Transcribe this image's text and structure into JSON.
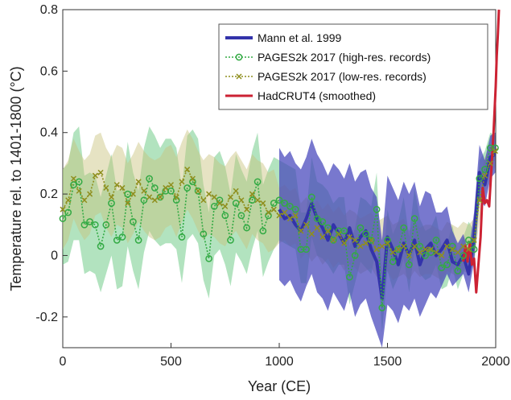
{
  "chart_data": {
    "type": "line",
    "title": "",
    "xlabel": "Year (CE)",
    "ylabel": "Temperature rel. to 1401-1800 (°C)",
    "xlim": [
      0,
      2000
    ],
    "ylim": [
      -0.3,
      0.8
    ],
    "xticks": [
      0,
      500,
      1000,
      1500,
      2000
    ],
    "xtick_labels": [
      "0",
      "500",
      "1000",
      "1500",
      "2000"
    ],
    "yticks": [
      -0.2,
      0,
      0.2,
      0.4,
      0.6,
      0.8
    ],
    "ytick_labels": [
      "-0.2",
      "0",
      "0.2",
      "0.4",
      "0.6",
      "0.8"
    ],
    "grid": false,
    "legend_position": "top-right",
    "series": [
      {
        "name": "Mann et al. 1999",
        "color": "#3333aa",
        "band_color": "#4444bb",
        "x": [
          1000,
          1025,
          1050,
          1075,
          1100,
          1125,
          1150,
          1175,
          1200,
          1225,
          1250,
          1275,
          1300,
          1325,
          1350,
          1375,
          1400,
          1425,
          1450,
          1475,
          1500,
          1525,
          1550,
          1575,
          1600,
          1625,
          1650,
          1675,
          1700,
          1725,
          1750,
          1775,
          1800,
          1825,
          1850,
          1875,
          1900,
          1925,
          1950,
          1975,
          1998
        ],
        "values": [
          0.15,
          0.12,
          0.13,
          0.1,
          0.08,
          0.12,
          0.17,
          0.12,
          0.09,
          0.05,
          0.1,
          0.07,
          0.04,
          0.09,
          0.03,
          0.06,
          0.08,
          0.02,
          -0.02,
          -0.14,
          0.06,
          0.02,
          -0.03,
          0.04,
          0.0,
          0.05,
          -0.03,
          0.02,
          0.04,
          0.0,
          0.02,
          0.05,
          -0.02,
          -0.03,
          0.0,
          -0.06,
          0.06,
          0.27,
          0.23,
          0.32,
          0.33
        ],
        "lower": [
          -0.08,
          -0.1,
          -0.08,
          -0.12,
          -0.15,
          -0.1,
          -0.06,
          -0.12,
          -0.14,
          -0.18,
          -0.12,
          -0.15,
          -0.18,
          -0.12,
          -0.2,
          -0.16,
          -0.14,
          -0.2,
          -0.25,
          -0.33,
          -0.16,
          -0.18,
          -0.22,
          -0.16,
          -0.18,
          -0.14,
          -0.2,
          -0.16,
          -0.12,
          -0.14,
          -0.1,
          -0.06,
          -0.1,
          -0.08,
          -0.06,
          -0.12,
          -0.02,
          0.18,
          0.16,
          0.25,
          0.27
        ],
        "upper": [
          0.35,
          0.32,
          0.34,
          0.3,
          0.28,
          0.32,
          0.38,
          0.33,
          0.3,
          0.26,
          0.3,
          0.28,
          0.25,
          0.3,
          0.24,
          0.27,
          0.28,
          0.22,
          0.19,
          0.05,
          0.26,
          0.22,
          0.18,
          0.24,
          0.2,
          0.24,
          0.16,
          0.21,
          0.2,
          0.14,
          0.14,
          0.16,
          0.08,
          0.04,
          0.07,
          0.01,
          0.14,
          0.36,
          0.31,
          0.39,
          0.4
        ]
      },
      {
        "name": "PAGES2k 2017 (high-res. records)",
        "color": "#33aa44",
        "band_color": "#55c070",
        "x": [
          0,
          25,
          50,
          75,
          100,
          125,
          150,
          175,
          200,
          225,
          250,
          275,
          300,
          325,
          350,
          375,
          400,
          425,
          450,
          475,
          500,
          525,
          550,
          575,
          600,
          625,
          650,
          675,
          700,
          725,
          750,
          775,
          800,
          825,
          850,
          875,
          900,
          925,
          950,
          975,
          1000,
          1025,
          1050,
          1075,
          1100,
          1125,
          1150,
          1175,
          1200,
          1225,
          1250,
          1275,
          1300,
          1325,
          1350,
          1375,
          1400,
          1425,
          1450,
          1475,
          1500,
          1525,
          1550,
          1575,
          1600,
          1625,
          1650,
          1675,
          1700,
          1725,
          1750,
          1775,
          1800,
          1825,
          1850,
          1875,
          1900,
          1925,
          1950,
          1975,
          1998
        ],
        "values": [
          0.12,
          0.14,
          0.23,
          0.24,
          0.1,
          0.11,
          0.1,
          0.03,
          0.1,
          0.17,
          0.05,
          0.06,
          0.2,
          0.11,
          0.05,
          0.18,
          0.25,
          0.22,
          0.19,
          0.21,
          0.21,
          0.18,
          0.06,
          0.22,
          0.24,
          0.21,
          0.07,
          -0.01,
          0.16,
          0.18,
          0.13,
          0.05,
          0.17,
          0.13,
          0.09,
          0.18,
          0.24,
          0.08,
          0.13,
          0.17,
          0.18,
          0.17,
          0.16,
          0.15,
          0.02,
          0.02,
          0.19,
          0.12,
          0.11,
          0.09,
          0.05,
          0.08,
          0.08,
          -0.07,
          0.0,
          0.09,
          0.07,
          0.05,
          0.15,
          -0.17,
          0.05,
          -0.02,
          0.02,
          0.09,
          -0.03,
          0.12,
          0.03,
          0.0,
          0.01,
          0.05,
          -0.04,
          -0.03,
          0.03,
          -0.05,
          0.0,
          0.05,
          0.02,
          0.25,
          0.28,
          0.35,
          0.35
        ],
        "lower": [
          -0.03,
          -0.02,
          0.05,
          0.05,
          -0.06,
          -0.05,
          -0.06,
          -0.12,
          -0.06,
          0.0,
          -0.11,
          -0.1,
          0.03,
          -0.05,
          -0.11,
          0.01,
          0.08,
          0.05,
          0.03,
          0.04,
          0.04,
          0.02,
          -0.09,
          0.05,
          0.07,
          0.04,
          -0.08,
          -0.14,
          0.0,
          0.02,
          -0.03,
          -0.1,
          0.01,
          -0.02,
          -0.06,
          0.02,
          0.08,
          -0.07,
          -0.02,
          0.02,
          0.05,
          0.04,
          0.03,
          0.02,
          -0.09,
          -0.09,
          0.06,
          0.0,
          -0.01,
          -0.03,
          -0.06,
          -0.03,
          -0.03,
          -0.16,
          -0.09,
          -0.02,
          -0.04,
          -0.06,
          0.03,
          -0.25,
          -0.05,
          -0.11,
          -0.07,
          -0.01,
          -0.12,
          0.02,
          -0.06,
          -0.08,
          -0.07,
          -0.03,
          -0.11,
          -0.1,
          -0.04,
          -0.11,
          -0.06,
          -0.01,
          -0.04,
          0.18,
          0.22,
          0.3,
          0.31
        ],
        "upper": [
          0.28,
          0.3,
          0.4,
          0.42,
          0.26,
          0.27,
          0.26,
          0.19,
          0.26,
          0.33,
          0.21,
          0.22,
          0.37,
          0.27,
          0.21,
          0.35,
          0.42,
          0.39,
          0.35,
          0.38,
          0.38,
          0.35,
          0.22,
          0.39,
          0.41,
          0.38,
          0.23,
          0.14,
          0.32,
          0.34,
          0.29,
          0.2,
          0.33,
          0.28,
          0.24,
          0.34,
          0.4,
          0.23,
          0.28,
          0.32,
          0.31,
          0.3,
          0.29,
          0.28,
          0.14,
          0.14,
          0.32,
          0.24,
          0.23,
          0.21,
          0.17,
          0.19,
          0.19,
          0.03,
          0.09,
          0.19,
          0.18,
          0.16,
          0.27,
          -0.08,
          0.15,
          0.07,
          0.11,
          0.19,
          0.06,
          0.22,
          0.12,
          0.08,
          0.09,
          0.13,
          0.03,
          0.04,
          0.1,
          0.01,
          0.06,
          0.11,
          0.08,
          0.31,
          0.34,
          0.4,
          0.39
        ]
      },
      {
        "name": "PAGES2k 2017 (low-res. records)",
        "color": "#8f8f1e",
        "band_color": "#c8c07a",
        "x": [
          0,
          25,
          50,
          75,
          100,
          125,
          150,
          175,
          200,
          225,
          250,
          275,
          300,
          325,
          350,
          375,
          400,
          425,
          450,
          475,
          500,
          525,
          550,
          575,
          600,
          625,
          650,
          675,
          700,
          725,
          750,
          775,
          800,
          825,
          850,
          875,
          900,
          925,
          950,
          975,
          1000,
          1025,
          1050,
          1075,
          1100,
          1125,
          1150,
          1175,
          1200,
          1225,
          1250,
          1275,
          1300,
          1325,
          1350,
          1375,
          1400,
          1425,
          1450,
          1475,
          1500,
          1525,
          1550,
          1575,
          1600,
          1625,
          1650,
          1675,
          1700,
          1725,
          1750,
          1775,
          1800,
          1825,
          1850,
          1875,
          1900,
          1925,
          1950,
          1975,
          1998
        ],
        "values": [
          0.15,
          0.18,
          0.25,
          0.21,
          0.18,
          0.2,
          0.26,
          0.27,
          0.22,
          0.19,
          0.23,
          0.22,
          0.17,
          0.2,
          0.24,
          0.21,
          0.19,
          0.18,
          0.19,
          0.22,
          0.23,
          0.19,
          0.24,
          0.28,
          0.25,
          0.21,
          0.18,
          0.2,
          0.19,
          0.17,
          0.16,
          0.19,
          0.21,
          0.18,
          0.15,
          0.2,
          0.18,
          0.17,
          0.14,
          0.15,
          0.13,
          0.14,
          0.12,
          0.13,
          0.08,
          0.1,
          0.07,
          0.09,
          0.06,
          0.08,
          0.05,
          0.07,
          0.04,
          0.06,
          0.05,
          0.03,
          0.04,
          0.05,
          0.02,
          0.03,
          0.04,
          0.01,
          0.02,
          0.03,
          0.0,
          0.03,
          0.01,
          0.02,
          0.02,
          0.01,
          0.0,
          0.03,
          0.02,
          0.01,
          0.03,
          0.02,
          0.05,
          0.18,
          0.26,
          0.3,
          0.34
        ],
        "lower": [
          0.02,
          0.05,
          0.12,
          0.08,
          0.05,
          0.07,
          0.13,
          0.14,
          0.09,
          0.06,
          0.1,
          0.09,
          0.04,
          0.07,
          0.11,
          0.08,
          0.06,
          0.05,
          0.06,
          0.09,
          0.1,
          0.06,
          0.11,
          0.15,
          0.12,
          0.08,
          0.05,
          0.07,
          0.06,
          0.04,
          0.03,
          0.06,
          0.08,
          0.05,
          0.02,
          0.07,
          0.05,
          0.04,
          0.01,
          0.02,
          0.04,
          0.05,
          0.03,
          0.04,
          -0.01,
          0.01,
          -0.02,
          0.0,
          -0.03,
          -0.01,
          -0.04,
          -0.02,
          -0.05,
          -0.03,
          -0.04,
          -0.06,
          -0.05,
          -0.04,
          -0.07,
          -0.06,
          -0.05,
          -0.08,
          -0.07,
          -0.06,
          -0.08,
          -0.05,
          -0.07,
          -0.06,
          -0.06,
          -0.07,
          -0.08,
          -0.05,
          -0.06,
          -0.07,
          -0.05,
          -0.06,
          -0.02,
          0.11,
          0.2,
          0.25,
          0.29
        ],
        "upper": [
          0.28,
          0.31,
          0.38,
          0.34,
          0.31,
          0.33,
          0.39,
          0.4,
          0.35,
          0.32,
          0.36,
          0.35,
          0.3,
          0.33,
          0.37,
          0.34,
          0.32,
          0.31,
          0.32,
          0.35,
          0.36,
          0.32,
          0.37,
          0.41,
          0.38,
          0.34,
          0.31,
          0.33,
          0.32,
          0.3,
          0.29,
          0.32,
          0.34,
          0.31,
          0.28,
          0.33,
          0.31,
          0.3,
          0.27,
          0.28,
          0.22,
          0.23,
          0.21,
          0.22,
          0.17,
          0.19,
          0.16,
          0.18,
          0.15,
          0.17,
          0.14,
          0.16,
          0.13,
          0.15,
          0.14,
          0.12,
          0.13,
          0.14,
          0.11,
          0.12,
          0.13,
          0.1,
          0.11,
          0.12,
          0.08,
          0.11,
          0.09,
          0.1,
          0.1,
          0.09,
          0.08,
          0.11,
          0.1,
          0.09,
          0.11,
          0.1,
          0.12,
          0.25,
          0.32,
          0.35,
          0.39
        ]
      },
      {
        "name": "HadCRUT4 (smoothed)",
        "color": "#cc2233",
        "x": [
          1850,
          1860,
          1870,
          1880,
          1890,
          1900,
          1910,
          1920,
          1930,
          1940,
          1950,
          1960,
          1970,
          1980,
          1990,
          2000,
          2005,
          2010,
          2015
        ],
        "values": [
          -0.02,
          0.03,
          -0.02,
          0.04,
          -0.03,
          -0.01,
          -0.12,
          -0.03,
          0.06,
          0.22,
          0.17,
          0.18,
          0.16,
          0.28,
          0.4,
          0.55,
          0.65,
          0.72,
          0.8
        ]
      }
    ]
  }
}
